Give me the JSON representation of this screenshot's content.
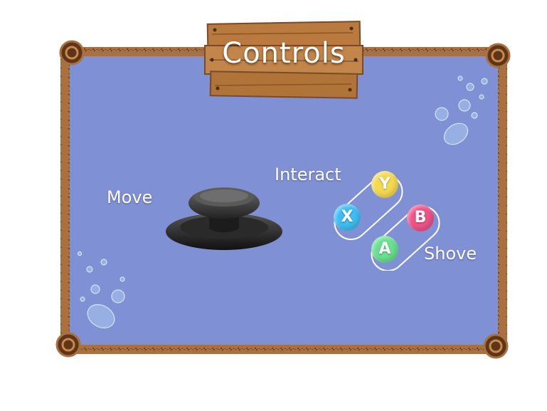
{
  "title": "Controls",
  "controls": {
    "move_label": "Move",
    "interact_label": "Interact",
    "shove_label": "Shove"
  },
  "buttons": {
    "y": "Y",
    "x": "X",
    "b": "B",
    "a": "A"
  },
  "colors": {
    "panel": "#7f90d4",
    "rope": "#7a4a26",
    "sign": "#b87a3e",
    "button_y": "#f3d94f",
    "button_x": "#3ebdf0",
    "button_b": "#ec5387",
    "button_a": "#68e08f"
  },
  "icons": [
    "joystick-icon",
    "bubbles-icon",
    "wooden-sign-icon",
    "rope-frame-icon"
  ]
}
